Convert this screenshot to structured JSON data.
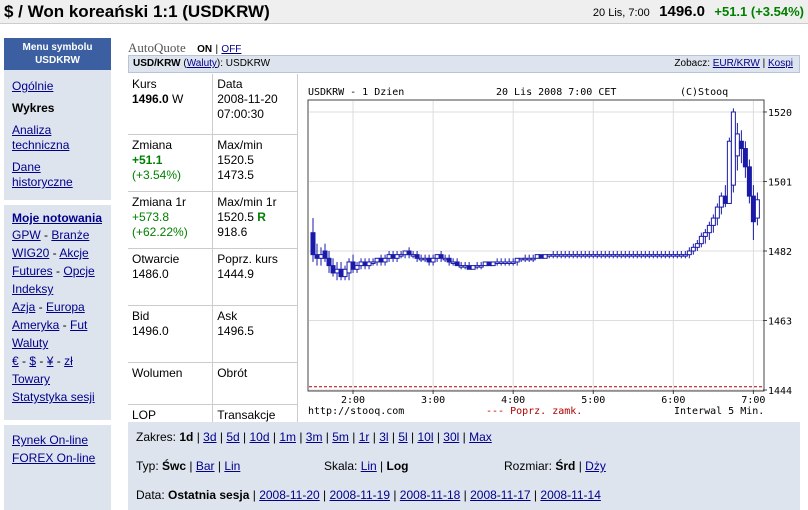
{
  "header": {
    "title": "$ / Won koreański 1:1 (USDKRW)",
    "date": "20 Lis, 7:00",
    "price": "1496.0",
    "change": "+51.1 (+3.54%)"
  },
  "sidebar": {
    "head_line1": "Menu symbolu",
    "head_line2": "USDKRW",
    "items": [
      {
        "label": "Ogólnie"
      },
      {
        "label": "Wykres"
      },
      {
        "label": "Analiza techniczna"
      },
      {
        "label": "Dane historyczne"
      }
    ],
    "moje": "Moje notowania",
    "lines": [
      [
        "GPW",
        "Branże"
      ],
      [
        "WIG20",
        "Akcje"
      ],
      [
        "Futures",
        "Opcje"
      ],
      [
        "Indeksy"
      ],
      [
        "Azja",
        "Europa"
      ],
      [
        "Ameryka",
        "Fut"
      ],
      [
        "Waluty"
      ],
      [
        "€",
        "$",
        "¥",
        "zł"
      ],
      [
        "Towary"
      ],
      [
        "Statystyka sesji"
      ]
    ],
    "bottom": [
      "Rynek On-line",
      "FOREX On-line"
    ]
  },
  "autoquote": {
    "label": "AutoQuote",
    "on": "ON",
    "sep": "|",
    "off": "OFF"
  },
  "bar": {
    "symbol": "USD/KRW",
    "paren_open": "(",
    "waluty": "Waluty",
    "paren_rest": "): USDKRW",
    "zobacz": "Zobacz:",
    "eur": "EUR/KRW",
    "sep": "|",
    "kospi": "Kospi"
  },
  "stats": {
    "kurs_label": "Kurs",
    "kurs_value": "1496.0",
    "kurs_unit": "W",
    "data_label": "Data",
    "data_value1": "2008-11-20",
    "data_value2": "07:00:30",
    "zmiana_label": "Zmiana",
    "zmiana_value1": "+51.1",
    "zmiana_value2": "(+3.54%)",
    "maxmin_label": "Max/min",
    "maxmin_value1": "1520.5",
    "maxmin_value2": "1473.5",
    "zmiana1r_label": "Zmiana 1r",
    "zmiana1r_value1": "+573.8",
    "zmiana1r_value2": "(+62.22%)",
    "maxmin1r_label": "Max/min 1r",
    "maxmin1r_value1": "1520.5",
    "maxmin1r_flag": "R",
    "maxmin1r_value2": "918.6",
    "otwarcie_label": "Otwarcie",
    "otwarcie_value": "1486.0",
    "poprz_label": "Poprz. kurs",
    "poprz_value": "1444.9",
    "bid_label": "Bid",
    "bid_value": "1496.0",
    "ask_label": "Ask",
    "ask_value": "1496.5",
    "wolumen_label": "Wolumen",
    "obrot_label": "Obrót",
    "lop_label": "LOP",
    "transakcje_label": "Transakcje"
  },
  "chart_data": {
    "type": "candlestick",
    "title_left": "USDKRW - 1 Dzien",
    "title_center": "20 Lis 2008 7:00 CET",
    "title_right": "(C)Stooq",
    "footer_left": "http://stooq.com",
    "footer_center": "--- Poprz. zamk.",
    "footer_right": "Interwal 5 Min.",
    "x_ticks": [
      "2:00",
      "3:00",
      "4:00",
      "5:00",
      "6:00",
      "7:00"
    ],
    "y_ticks": [
      1520,
      1501,
      1482,
      1463,
      1444
    ],
    "ylim": [
      1444,
      1523
    ],
    "xlim": [
      1.45,
      7.12
    ],
    "prev_close": 1444.9,
    "candles": [
      {
        "t": 1.5,
        "o": 1487,
        "h": 1491,
        "l": 1479,
        "c": 1481
      },
      {
        "t": 1.55,
        "o": 1481,
        "h": 1484,
        "l": 1478,
        "c": 1480
      },
      {
        "t": 1.6,
        "o": 1480,
        "h": 1483,
        "l": 1478,
        "c": 1481
      },
      {
        "t": 1.65,
        "o": 1482,
        "h": 1484,
        "l": 1479,
        "c": 1480
      },
      {
        "t": 1.7,
        "o": 1480,
        "h": 1482,
        "l": 1476,
        "c": 1478
      },
      {
        "t": 1.75,
        "o": 1478,
        "h": 1480,
        "l": 1475,
        "c": 1476
      },
      {
        "t": 1.8,
        "o": 1476,
        "h": 1479,
        "l": 1474,
        "c": 1477
      },
      {
        "t": 1.85,
        "o": 1477,
        "h": 1479,
        "l": 1474,
        "c": 1475
      },
      {
        "t": 1.9,
        "o": 1475,
        "h": 1478,
        "l": 1474,
        "c": 1477
      },
      {
        "t": 1.95,
        "o": 1476,
        "h": 1480,
        "l": 1474,
        "c": 1479
      },
      {
        "t": 2.0,
        "o": 1479,
        "h": 1481,
        "l": 1476,
        "c": 1477
      },
      {
        "t": 2.05,
        "o": 1477,
        "h": 1479,
        "l": 1476,
        "c": 1478
      },
      {
        "t": 2.1,
        "o": 1478,
        "h": 1480,
        "l": 1477,
        "c": 1479
      },
      {
        "t": 2.15,
        "o": 1479,
        "h": 1480,
        "l": 1477,
        "c": 1478
      },
      {
        "t": 2.2,
        "o": 1478,
        "h": 1480,
        "l": 1477,
        "c": 1479
      },
      {
        "t": 2.25,
        "o": 1479,
        "h": 1480,
        "l": 1478,
        "c": 1479
      },
      {
        "t": 2.3,
        "o": 1479,
        "h": 1480,
        "l": 1478,
        "c": 1480
      },
      {
        "t": 2.35,
        "o": 1480,
        "h": 1481,
        "l": 1478,
        "c": 1479
      },
      {
        "t": 2.4,
        "o": 1479,
        "h": 1481,
        "l": 1478,
        "c": 1480
      },
      {
        "t": 2.45,
        "o": 1480,
        "h": 1482,
        "l": 1479,
        "c": 1481
      },
      {
        "t": 2.5,
        "o": 1481,
        "h": 1482,
        "l": 1479,
        "c": 1480
      },
      {
        "t": 2.55,
        "o": 1480,
        "h": 1482,
        "l": 1479,
        "c": 1481
      },
      {
        "t": 2.6,
        "o": 1481,
        "h": 1482,
        "l": 1480,
        "c": 1481
      },
      {
        "t": 2.65,
        "o": 1481,
        "h": 1482,
        "l": 1480,
        "c": 1482
      },
      {
        "t": 2.7,
        "o": 1482,
        "h": 1483,
        "l": 1480,
        "c": 1481
      },
      {
        "t": 2.75,
        "o": 1481,
        "h": 1482,
        "l": 1480,
        "c": 1481
      },
      {
        "t": 2.8,
        "o": 1481,
        "h": 1482,
        "l": 1479,
        "c": 1480
      },
      {
        "t": 2.85,
        "o": 1480,
        "h": 1481,
        "l": 1479,
        "c": 1480
      },
      {
        "t": 2.9,
        "o": 1480,
        "h": 1481,
        "l": 1479,
        "c": 1480
      },
      {
        "t": 2.95,
        "o": 1480,
        "h": 1481,
        "l": 1478,
        "c": 1479
      },
      {
        "t": 3.0,
        "o": 1479,
        "h": 1481,
        "l": 1478,
        "c": 1480
      },
      {
        "t": 3.05,
        "o": 1480,
        "h": 1481,
        "l": 1479,
        "c": 1481
      },
      {
        "t": 3.1,
        "o": 1481,
        "h": 1482,
        "l": 1479,
        "c": 1480
      },
      {
        "t": 3.15,
        "o": 1480,
        "h": 1481,
        "l": 1479,
        "c": 1480
      },
      {
        "t": 3.2,
        "o": 1480,
        "h": 1481,
        "l": 1478,
        "c": 1479
      },
      {
        "t": 3.25,
        "o": 1479,
        "h": 1480,
        "l": 1478,
        "c": 1479
      },
      {
        "t": 3.3,
        "o": 1479,
        "h": 1480,
        "l": 1478,
        "c": 1478
      },
      {
        "t": 3.35,
        "o": 1478,
        "h": 1479,
        "l": 1477,
        "c": 1478
      },
      {
        "t": 3.4,
        "o": 1478,
        "h": 1479,
        "l": 1477,
        "c": 1478
      },
      {
        "t": 3.45,
        "o": 1478,
        "h": 1479,
        "l": 1477,
        "c": 1477
      },
      {
        "t": 3.5,
        "o": 1477,
        "h": 1478,
        "l": 1477,
        "c": 1478
      },
      {
        "t": 3.55,
        "o": 1478,
        "h": 1479,
        "l": 1477,
        "c": 1478
      },
      {
        "t": 3.6,
        "o": 1478,
        "h": 1479,
        "l": 1477,
        "c": 1478
      },
      {
        "t": 3.65,
        "o": 1478,
        "h": 1479,
        "l": 1478,
        "c": 1479
      },
      {
        "t": 3.7,
        "o": 1479,
        "h": 1479,
        "l": 1478,
        "c": 1478
      },
      {
        "t": 3.75,
        "o": 1478,
        "h": 1479,
        "l": 1478,
        "c": 1479
      },
      {
        "t": 3.8,
        "o": 1479,
        "h": 1480,
        "l": 1478,
        "c": 1479
      },
      {
        "t": 3.85,
        "o": 1479,
        "h": 1480,
        "l": 1478,
        "c": 1479
      },
      {
        "t": 3.9,
        "o": 1479,
        "h": 1480,
        "l": 1478,
        "c": 1479
      },
      {
        "t": 3.95,
        "o": 1479,
        "h": 1480,
        "l": 1478,
        "c": 1479
      },
      {
        "t": 4.0,
        "o": 1479,
        "h": 1480,
        "l": 1478,
        "c": 1479
      },
      {
        "t": 4.05,
        "o": 1479,
        "h": 1480,
        "l": 1478,
        "c": 1480
      },
      {
        "t": 4.1,
        "o": 1480,
        "h": 1480,
        "l": 1479,
        "c": 1480
      },
      {
        "t": 4.15,
        "o": 1480,
        "h": 1481,
        "l": 1479,
        "c": 1480
      },
      {
        "t": 4.2,
        "o": 1480,
        "h": 1481,
        "l": 1479,
        "c": 1480
      },
      {
        "t": 4.25,
        "o": 1480,
        "h": 1481,
        "l": 1479,
        "c": 1480
      },
      {
        "t": 4.3,
        "o": 1480,
        "h": 1481,
        "l": 1480,
        "c": 1481
      },
      {
        "t": 4.35,
        "o": 1481,
        "h": 1481,
        "l": 1480,
        "c": 1480
      },
      {
        "t": 4.4,
        "o": 1480,
        "h": 1481,
        "l": 1480,
        "c": 1481
      },
      {
        "t": 4.45,
        "o": 1481,
        "h": 1481,
        "l": 1480,
        "c": 1481
      },
      {
        "t": 4.5,
        "o": 1481,
        "h": 1482,
        "l": 1480,
        "c": 1481
      },
      {
        "t": 4.55,
        "o": 1481,
        "h": 1482,
        "l": 1480,
        "c": 1481
      },
      {
        "t": 4.6,
        "o": 1481,
        "h": 1482,
        "l": 1480,
        "c": 1481
      },
      {
        "t": 4.65,
        "o": 1481,
        "h": 1482,
        "l": 1480,
        "c": 1481
      },
      {
        "t": 4.7,
        "o": 1481,
        "h": 1482,
        "l": 1480,
        "c": 1481
      },
      {
        "t": 4.75,
        "o": 1481,
        "h": 1482,
        "l": 1480,
        "c": 1481
      },
      {
        "t": 4.8,
        "o": 1481,
        "h": 1482,
        "l": 1480,
        "c": 1481
      },
      {
        "t": 4.85,
        "o": 1481,
        "h": 1482,
        "l": 1480,
        "c": 1481
      },
      {
        "t": 4.9,
        "o": 1481,
        "h": 1482,
        "l": 1480,
        "c": 1481
      },
      {
        "t": 4.95,
        "o": 1481,
        "h": 1482,
        "l": 1480,
        "c": 1481
      },
      {
        "t": 5.0,
        "o": 1481,
        "h": 1482,
        "l": 1480,
        "c": 1481
      },
      {
        "t": 5.05,
        "o": 1481,
        "h": 1482,
        "l": 1480,
        "c": 1481
      },
      {
        "t": 5.1,
        "o": 1481,
        "h": 1482,
        "l": 1480,
        "c": 1481
      },
      {
        "t": 5.15,
        "o": 1481,
        "h": 1482,
        "l": 1480,
        "c": 1481
      },
      {
        "t": 5.2,
        "o": 1481,
        "h": 1482,
        "l": 1480,
        "c": 1481
      },
      {
        "t": 5.25,
        "o": 1481,
        "h": 1482,
        "l": 1480,
        "c": 1481
      },
      {
        "t": 5.3,
        "o": 1481,
        "h": 1482,
        "l": 1480,
        "c": 1481
      },
      {
        "t": 5.35,
        "o": 1481,
        "h": 1482,
        "l": 1480,
        "c": 1481
      },
      {
        "t": 5.4,
        "o": 1481,
        "h": 1482,
        "l": 1480,
        "c": 1481
      },
      {
        "t": 5.45,
        "o": 1481,
        "h": 1482,
        "l": 1480,
        "c": 1481
      },
      {
        "t": 5.5,
        "o": 1481,
        "h": 1482,
        "l": 1480,
        "c": 1481
      },
      {
        "t": 5.55,
        "o": 1481,
        "h": 1482,
        "l": 1480,
        "c": 1481
      },
      {
        "t": 5.6,
        "o": 1481,
        "h": 1482,
        "l": 1480,
        "c": 1481
      },
      {
        "t": 5.65,
        "o": 1481,
        "h": 1482,
        "l": 1480,
        "c": 1481
      },
      {
        "t": 5.7,
        "o": 1481,
        "h": 1482,
        "l": 1480,
        "c": 1481
      },
      {
        "t": 5.75,
        "o": 1481,
        "h": 1482,
        "l": 1480,
        "c": 1481
      },
      {
        "t": 5.8,
        "o": 1481,
        "h": 1482,
        "l": 1480,
        "c": 1481
      },
      {
        "t": 5.85,
        "o": 1481,
        "h": 1482,
        "l": 1480,
        "c": 1481
      },
      {
        "t": 5.9,
        "o": 1481,
        "h": 1482,
        "l": 1480,
        "c": 1481
      },
      {
        "t": 5.95,
        "o": 1481,
        "h": 1482,
        "l": 1480,
        "c": 1481
      },
      {
        "t": 6.0,
        "o": 1481,
        "h": 1482,
        "l": 1480,
        "c": 1481
      },
      {
        "t": 6.05,
        "o": 1481,
        "h": 1482,
        "l": 1480,
        "c": 1481
      },
      {
        "t": 6.1,
        "o": 1481,
        "h": 1482,
        "l": 1480,
        "c": 1481
      },
      {
        "t": 6.15,
        "o": 1481,
        "h": 1482,
        "l": 1480,
        "c": 1481
      },
      {
        "t": 6.2,
        "o": 1481,
        "h": 1483,
        "l": 1480,
        "c": 1482
      },
      {
        "t": 6.25,
        "o": 1482,
        "h": 1484,
        "l": 1481,
        "c": 1483
      },
      {
        "t": 6.3,
        "o": 1483,
        "h": 1485,
        "l": 1482,
        "c": 1484
      },
      {
        "t": 6.35,
        "o": 1484,
        "h": 1487,
        "l": 1483,
        "c": 1486
      },
      {
        "t": 6.4,
        "o": 1486,
        "h": 1488,
        "l": 1484,
        "c": 1487
      },
      {
        "t": 6.45,
        "o": 1487,
        "h": 1490,
        "l": 1485,
        "c": 1489
      },
      {
        "t": 6.5,
        "o": 1489,
        "h": 1492,
        "l": 1487,
        "c": 1491
      },
      {
        "t": 6.55,
        "o": 1491,
        "h": 1495,
        "l": 1489,
        "c": 1494
      },
      {
        "t": 6.6,
        "o": 1494,
        "h": 1498,
        "l": 1492,
        "c": 1497
      },
      {
        "t": 6.65,
        "o": 1497,
        "h": 1500,
        "l": 1494,
        "c": 1495
      },
      {
        "t": 6.7,
        "o": 1495,
        "h": 1513,
        "l": 1495,
        "c": 1512
      },
      {
        "t": 6.75,
        "o": 1500,
        "h": 1521,
        "l": 1498,
        "c": 1520
      },
      {
        "t": 6.8,
        "o": 1508,
        "h": 1517,
        "l": 1504,
        "c": 1514
      },
      {
        "t": 6.85,
        "o": 1512,
        "h": 1515,
        "l": 1506,
        "c": 1510
      },
      {
        "t": 6.9,
        "o": 1510,
        "h": 1512,
        "l": 1502,
        "c": 1505
      },
      {
        "t": 6.95,
        "o": 1505,
        "h": 1507,
        "l": 1495,
        "c": 1497
      },
      {
        "t": 7.0,
        "o": 1497,
        "h": 1500,
        "l": 1485,
        "c": 1490
      },
      {
        "t": 7.05,
        "o": 1491,
        "h": 1498,
        "l": 1489,
        "c": 1496
      }
    ]
  },
  "controls": {
    "zakres_label": "Zakres:",
    "zakres_items": [
      {
        "label": "1d",
        "selected": true
      },
      {
        "label": "3d"
      },
      {
        "label": "5d"
      },
      {
        "label": "10d"
      },
      {
        "label": "1m"
      },
      {
        "label": "3m"
      },
      {
        "label": "5m"
      },
      {
        "label": "1r"
      },
      {
        "label": "3l"
      },
      {
        "label": "5l"
      },
      {
        "label": "10l"
      },
      {
        "label": "30l"
      },
      {
        "label": "Max"
      }
    ],
    "typ_label": "Typ:",
    "typ_items": [
      {
        "label": "Śwc",
        "selected": true
      },
      {
        "label": "Bar"
      },
      {
        "label": "Lin"
      }
    ],
    "skala_label": "Skala:",
    "skala_items": [
      {
        "label": "Lin"
      },
      {
        "label": "Log",
        "selected": true
      }
    ],
    "rozmiar_label": "Rozmiar:",
    "rozmiar_items": [
      {
        "label": "Śrd",
        "selected": true
      },
      {
        "label": "Dży"
      }
    ],
    "data_label": "Data:",
    "data_items": [
      {
        "label": "Ostatnia sesja",
        "selected": true
      },
      {
        "label": "2008-11-20"
      },
      {
        "label": "2008-11-19"
      },
      {
        "label": "2008-11-18"
      },
      {
        "label": "2008-11-17"
      },
      {
        "label": "2008-11-14"
      }
    ],
    "sep": "|"
  },
  "colors": {
    "candle": "#1a1aa8",
    "prev_close": "#b00000",
    "sidebar_head": "#3b5fa0",
    "up_text": "#008000"
  }
}
